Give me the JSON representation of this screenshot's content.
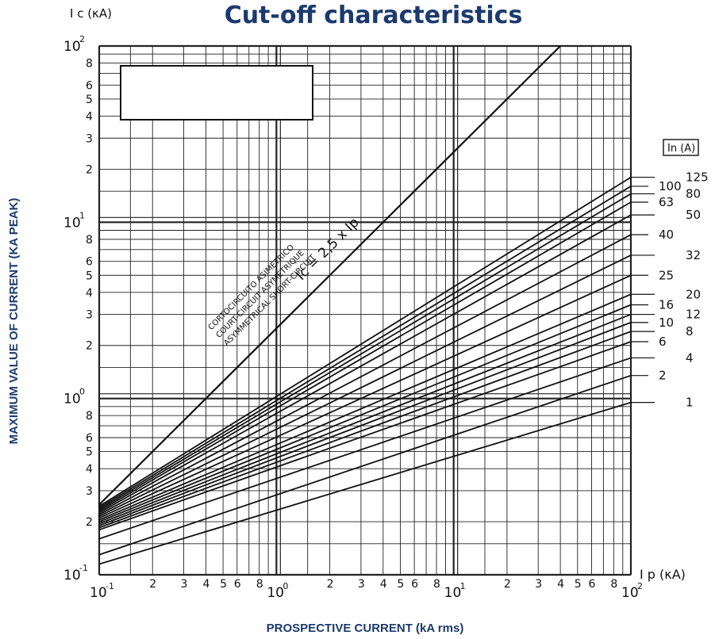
{
  "chart_data": {
    "type": "line",
    "title": "Cut-off characteristics",
    "xlabel": "PROSPECTIVE CURRENT (kA rms)",
    "ylabel": "MAXIMUM VALUE OF CURRENT (KA PEAK)",
    "x_unit_label": "I p (κA)",
    "y_unit_label": "I c (κA)",
    "x_scale": "log",
    "y_scale": "log",
    "xlim": [
      0.1,
      100
    ],
    "ylim": [
      0.1,
      100
    ],
    "grid": true,
    "major_ticks": [
      {
        "base": "10",
        "exp": "-1"
      },
      {
        "base": "10",
        "exp": "0"
      },
      {
        "base": "10",
        "exp": "1"
      },
      {
        "base": "10",
        "exp": "2"
      }
    ],
    "minor_tick_labels": [
      "2",
      "3",
      "4",
      "5",
      "6",
      "8"
    ],
    "legend_title": "In (A)",
    "asymmetric_line": {
      "label": "Ic = 2,5 x Ip",
      "factor": 2.5,
      "caption_lines": [
        "CORTOCIRCUITO ASIMÉTRICO",
        "COURT-CIRCUIT ASYMETRIQUE",
        "ASYMMETRICAL SHORT-CIRCUIT"
      ]
    },
    "series": [
      {
        "name": "125",
        "x": [
          0.1,
          100
        ],
        "y": [
          0.245,
          18.0
        ]
      },
      {
        "name": "100",
        "x": [
          0.1,
          100
        ],
        "y": [
          0.24,
          16.0
        ]
      },
      {
        "name": "80",
        "x": [
          0.1,
          100
        ],
        "y": [
          0.235,
          14.5
        ]
      },
      {
        "name": "63",
        "x": [
          0.1,
          100
        ],
        "y": [
          0.23,
          13.0
        ]
      },
      {
        "name": "50",
        "x": [
          0.1,
          100
        ],
        "y": [
          0.225,
          11.0
        ]
      },
      {
        "name": "40",
        "x": [
          0.1,
          100
        ],
        "y": [
          0.22,
          8.5
        ]
      },
      {
        "name": "32",
        "x": [
          0.1,
          100
        ],
        "y": [
          0.215,
          6.5
        ]
      },
      {
        "name": "25",
        "x": [
          0.1,
          100
        ],
        "y": [
          0.21,
          5.0
        ]
      },
      {
        "name": "20",
        "x": [
          0.1,
          100
        ],
        "y": [
          0.205,
          3.9
        ]
      },
      {
        "name": "16",
        "x": [
          0.1,
          100
        ],
        "y": [
          0.2,
          3.4
        ]
      },
      {
        "name": "12",
        "x": [
          0.1,
          100
        ],
        "y": [
          0.195,
          3.0
        ]
      },
      {
        "name": "10",
        "x": [
          0.1,
          100
        ],
        "y": [
          0.19,
          2.7
        ]
      },
      {
        "name": "8",
        "x": [
          0.1,
          100
        ],
        "y": [
          0.185,
          2.4
        ]
      },
      {
        "name": "6",
        "x": [
          0.1,
          100
        ],
        "y": [
          0.18,
          2.1
        ]
      },
      {
        "name": "4",
        "x": [
          0.1,
          100
        ],
        "y": [
          0.16,
          1.7
        ]
      },
      {
        "name": "2",
        "x": [
          0.1,
          100
        ],
        "y": [
          0.13,
          1.35
        ]
      },
      {
        "name": "1",
        "x": [
          0.1,
          100
        ],
        "y": [
          0.115,
          0.95
        ]
      }
    ]
  },
  "colors": {
    "title": "#1b3a6e",
    "ink": "#111111",
    "grid": "#222222",
    "background": "#ffffff"
  }
}
